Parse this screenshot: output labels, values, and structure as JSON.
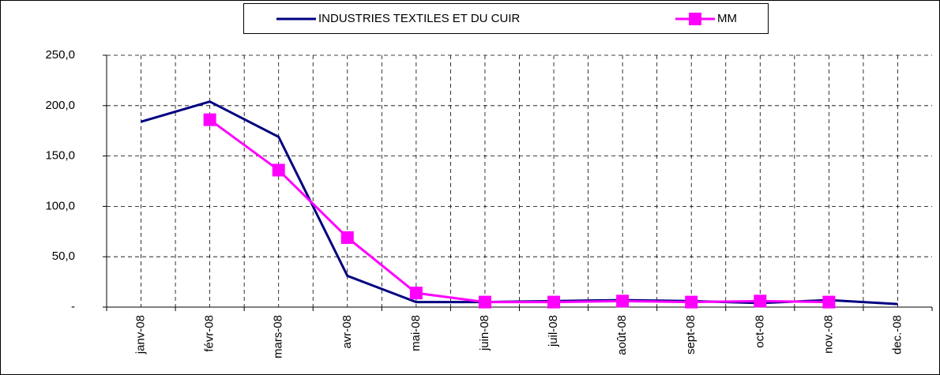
{
  "chart_data": {
    "type": "line",
    "categories": [
      "janv-08",
      "févr-08",
      "mars-08",
      "avr-08",
      "mai-08",
      "juin-08",
      "juil-08",
      "août-08",
      "sept-08",
      "oct-08",
      "nov.-08",
      "dec.-08"
    ],
    "series": [
      {
        "name": "INDUSTRIES TEXTILES ET DU CUIR",
        "color": "#000080",
        "marker": "none",
        "values": [
          184,
          204,
          169,
          31,
          5,
          5,
          6,
          7,
          6,
          4,
          7,
          3
        ]
      },
      {
        "name": "MM",
        "color": "#ff00ff",
        "marker": "square",
        "values": [
          null,
          186,
          136,
          69,
          14,
          5,
          5,
          6,
          5,
          6,
          5,
          null
        ]
      }
    ],
    "ylim": [
      0,
      250
    ],
    "yticks": [
      {
        "value": 0,
        "label": "-"
      },
      {
        "value": 50,
        "label": "50,0"
      },
      {
        "value": 100,
        "label": "100,0"
      },
      {
        "value": 150,
        "label": "150,0"
      },
      {
        "value": 200,
        "label": "200,0"
      },
      {
        "value": 250,
        "label": "250,0"
      }
    ],
    "grid": true,
    "legend": "top"
  }
}
